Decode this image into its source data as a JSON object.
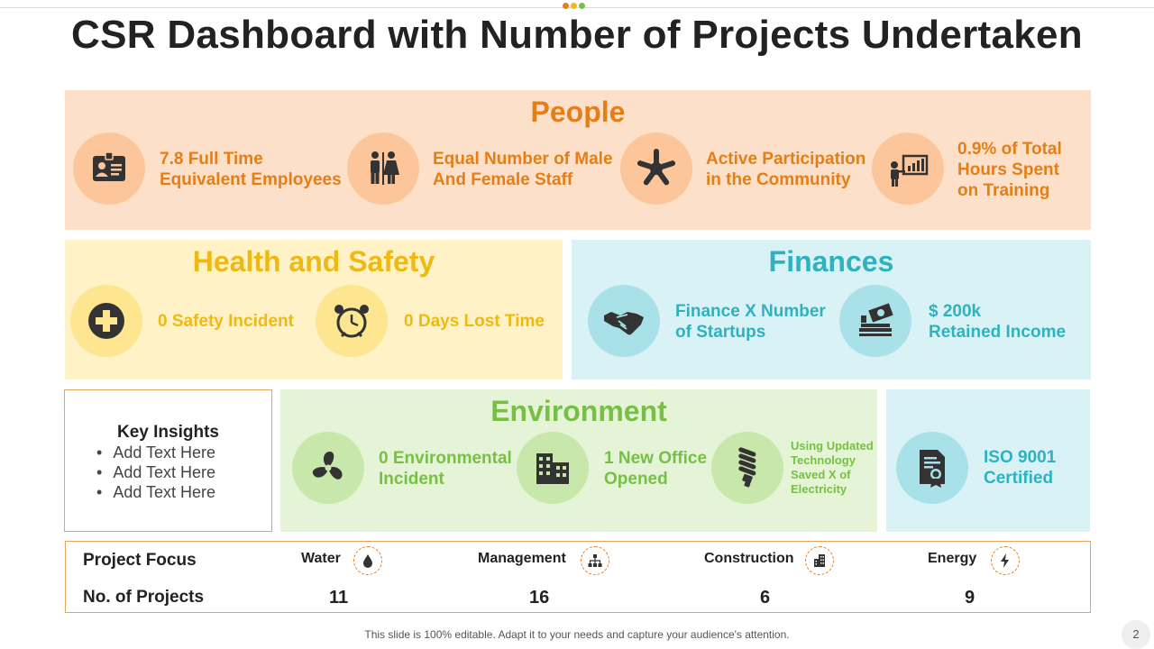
{
  "title": "CSR Dashboard with Number of Projects Undertaken",
  "header_dots": [
    "#e57e17",
    "#efb913",
    "#78c045"
  ],
  "people": {
    "title": "People",
    "items": [
      {
        "line1": "7.8 Full Time",
        "line2": "Equivalent Employees",
        "icon": "id-card-icon"
      },
      {
        "line1": "Equal Number of Male",
        "line2": "And Female Staff",
        "icon": "male-female-icon"
      },
      {
        "line1": "Active Participation",
        "line2": "in the Community",
        "icon": "community-hands-icon"
      },
      {
        "line1": "0.9% of Total",
        "line2": "Hours Spent",
        "line3": "on Training",
        "icon": "presentation-icon"
      }
    ]
  },
  "health": {
    "title": "Health and Safety",
    "items": [
      {
        "text": "0 Safety Incident",
        "icon": "medical-cross-icon"
      },
      {
        "text": "0 Days Lost Time",
        "icon": "alarm-clock-icon"
      }
    ]
  },
  "finances": {
    "title": "Finances",
    "items": [
      {
        "line1": "Finance X Number",
        "line2": "of Startups",
        "icon": "handshake-icon"
      },
      {
        "line1": "$ 200k",
        "line2": "Retained Income",
        "icon": "money-stack-icon"
      }
    ]
  },
  "insights": {
    "title": "Key Insights",
    "items": [
      "Add Text Here",
      "Add Text Here",
      "Add Text Here"
    ]
  },
  "environment": {
    "title": "Environment",
    "items": [
      {
        "line1": "0 Environmental",
        "line2": "Incident",
        "icon": "fan-icon"
      },
      {
        "line1": "1 New Office",
        "line2": "Opened",
        "icon": "office-building-icon"
      },
      {
        "line1": "Using Updated",
        "line2": "Technology",
        "line3": "Saved X of",
        "line4": "Electricity",
        "icon": "light-bulb-icon"
      }
    ]
  },
  "iso": {
    "line1": "ISO 9001",
    "line2": "Certified",
    "icon": "certificate-icon"
  },
  "project_focus": {
    "label": "Project Focus",
    "count_label": "No. of Projects",
    "categories": [
      {
        "name": "Water",
        "count": "11",
        "icon": "water-drop-icon"
      },
      {
        "name": "Management",
        "count": "16",
        "icon": "org-chart-icon"
      },
      {
        "name": "Construction",
        "count": "6",
        "icon": "building-icon"
      },
      {
        "name": "Energy",
        "count": "9",
        "icon": "lightning-icon"
      }
    ]
  },
  "footer": "This slide is 100% editable. Adapt it to your needs and capture your audience's attention.",
  "page_number": "2"
}
